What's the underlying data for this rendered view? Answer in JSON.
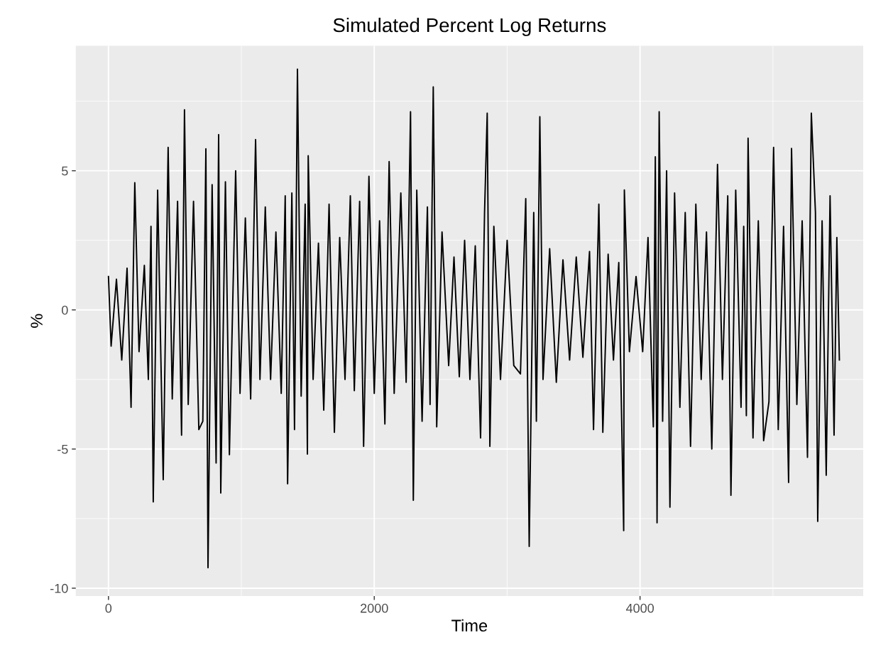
{
  "chart_data": {
    "type": "line",
    "title": "Simulated Percent Log Returns",
    "xlabel": "Time",
    "ylabel": "%",
    "xlim": [
      -246,
      5679
    ],
    "ylim": [
      -10.28,
      9.49
    ],
    "xticks": [
      0,
      2000,
      4000
    ],
    "yticks": [
      -10,
      -5,
      0,
      5
    ],
    "grid": true,
    "series": [
      {
        "color": "#000000",
        "x": [
          0,
          20,
          60,
          100,
          140,
          170,
          198,
          230,
          270,
          300,
          320,
          337,
          370,
          412,
          449,
          480,
          520,
          550,
          572,
          600,
          640,
          680,
          710,
          733,
          749,
          780,
          810,
          829,
          845,
          880,
          910,
          957,
          990,
          1030,
          1070,
          1107,
          1140,
          1180,
          1220,
          1260,
          1300,
          1330,
          1348,
          1380,
          1400,
          1422,
          1450,
          1480,
          1497,
          1503,
          1540,
          1580,
          1620,
          1660,
          1700,
          1740,
          1780,
          1820,
          1850,
          1890,
          1920,
          1960,
          2000,
          2040,
          2080,
          2112,
          2150,
          2200,
          2240,
          2273,
          2294,
          2320,
          2360,
          2400,
          2420,
          2444,
          2470,
          2510,
          2560,
          2600,
          2640,
          2680,
          2720,
          2760,
          2800,
          2830,
          2850,
          2870,
          2900,
          2950,
          3000,
          3050,
          3100,
          3140,
          3166,
          3200,
          3220,
          3246,
          3270,
          3320,
          3370,
          3420,
          3470,
          3520,
          3570,
          3620,
          3650,
          3690,
          3720,
          3760,
          3800,
          3840,
          3877,
          3882,
          3920,
          3970,
          4020,
          4060,
          4100,
          4115,
          4128,
          4144,
          4170,
          4200,
          4225,
          4260,
          4300,
          4340,
          4380,
          4420,
          4460,
          4500,
          4540,
          4583,
          4620,
          4660,
          4684,
          4720,
          4760,
          4780,
          4800,
          4813,
          4850,
          4890,
          4930,
          4970,
          5005,
          5040,
          5080,
          5118,
          5140,
          5180,
          5220,
          5260,
          5289,
          5320,
          5337,
          5370,
          5401,
          5430,
          5460,
          5481,
          5500
        ],
        "values": [
          1.2,
          -1.3,
          1.1,
          -1.8,
          1.5,
          -3.5,
          4.57,
          -1.5,
          1.6,
          -2.5,
          3.0,
          -6.9,
          4.3,
          -6.1,
          5.84,
          -3.2,
          3.9,
          -4.5,
          7.19,
          -3.4,
          3.9,
          -4.3,
          -4.0,
          5.79,
          -9.26,
          4.5,
          -5.5,
          6.3,
          -6.58,
          4.6,
          -5.2,
          5.0,
          -3.0,
          3.3,
          -3.2,
          6.12,
          -2.5,
          3.7,
          -2.5,
          2.8,
          -3.0,
          4.1,
          -6.25,
          4.2,
          -4.3,
          8.65,
          -3.1,
          3.8,
          -5.18,
          5.54,
          -2.5,
          2.4,
          -3.6,
          3.8,
          -4.4,
          2.6,
          -2.5,
          4.1,
          -2.9,
          3.9,
          -4.9,
          4.8,
          -3.0,
          3.2,
          -4.1,
          5.33,
          -3.0,
          4.2,
          -2.6,
          7.12,
          -6.84,
          4.3,
          -4.0,
          3.7,
          -3.4,
          8.01,
          -4.2,
          2.8,
          -2.0,
          1.9,
          -2.4,
          2.5,
          -2.5,
          2.3,
          -4.6,
          3.5,
          7.07,
          -4.9,
          3.0,
          -2.5,
          2.5,
          -2.0,
          -2.3,
          4.0,
          -8.5,
          3.5,
          -4.0,
          6.94,
          -2.5,
          2.2,
          -2.6,
          1.8,
          -1.8,
          1.9,
          -1.7,
          2.1,
          -4.3,
          3.8,
          -4.4,
          2.0,
          -1.8,
          1.7,
          -7.93,
          4.31,
          -1.5,
          1.2,
          -1.5,
          2.6,
          -4.2,
          5.5,
          -7.65,
          7.12,
          -4.0,
          5.0,
          -7.09,
          4.2,
          -3.5,
          3.5,
          -4.9,
          3.8,
          -2.5,
          2.8,
          -5.0,
          5.23,
          -2.5,
          4.1,
          -6.66,
          4.3,
          -3.5,
          3.0,
          -3.8,
          6.17,
          -4.6,
          3.2,
          -4.7,
          -3.3,
          5.84,
          -4.3,
          3.0,
          -6.2,
          5.8,
          -3.4,
          3.2,
          -5.3,
          7.07,
          3.5,
          -7.6,
          3.2,
          -5.94,
          4.1,
          -4.5,
          2.6,
          -1.8
        ]
      }
    ]
  }
}
